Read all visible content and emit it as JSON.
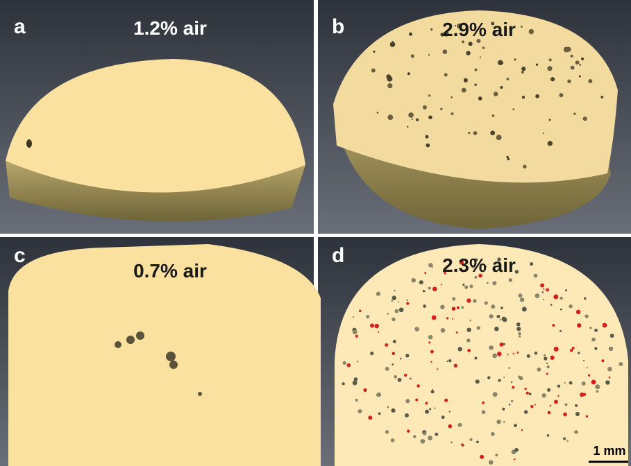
{
  "panels": [
    {
      "label": "a",
      "caption": "1.2% air"
    },
    {
      "label": "b",
      "caption": "2.9% air"
    },
    {
      "label": "c",
      "caption": "0.7% air"
    },
    {
      "label": "d",
      "caption": "2.3% air"
    }
  ],
  "scale_bar": "1 mm"
}
